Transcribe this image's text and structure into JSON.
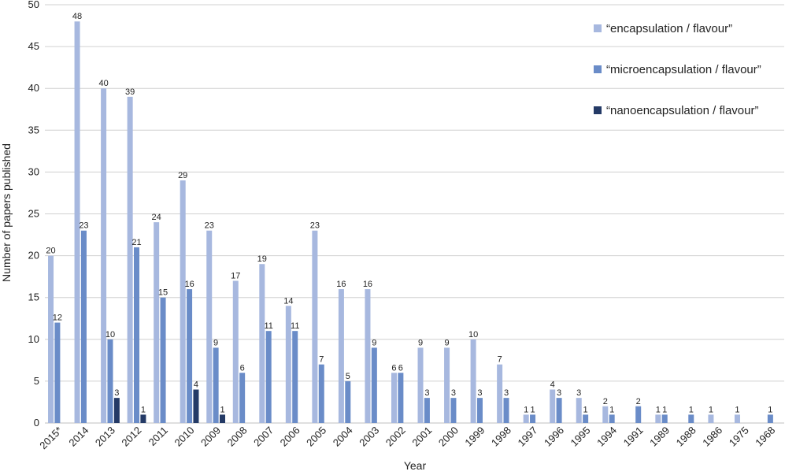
{
  "chart_data": {
    "type": "bar",
    "xlabel": "Year",
    "ylabel": "Number of papers published",
    "ylim": [
      0,
      50
    ],
    "yticks": [
      0,
      5,
      10,
      15,
      20,
      25,
      30,
      35,
      40,
      45,
      50
    ],
    "grid": true,
    "legend_position": "top-right",
    "categories": [
      "2015*",
      "2014",
      "2013",
      "2012",
      "2011",
      "2010",
      "2009",
      "2008",
      "2007",
      "2006",
      "2005",
      "2004",
      "2003",
      "2002",
      "2001",
      "2000",
      "1999",
      "1998",
      "1997",
      "1996",
      "1995",
      "1994",
      "1991",
      "1989",
      "1988",
      "1986",
      "1975",
      "1968"
    ],
    "series": [
      {
        "name": "“encapsulation / flavour”",
        "color": "#a7b8df",
        "values": [
          20,
          48,
          40,
          39,
          24,
          29,
          23,
          17,
          19,
          14,
          23,
          16,
          16,
          6,
          9,
          9,
          10,
          7,
          1,
          4,
          3,
          2,
          0,
          1,
          0,
          1,
          1,
          0
        ]
      },
      {
        "name": "“microencapsulation / flavour”",
        "color": "#6a8cc8",
        "values": [
          12,
          23,
          10,
          21,
          15,
          16,
          9,
          6,
          11,
          11,
          7,
          5,
          9,
          6,
          3,
          3,
          3,
          3,
          1,
          3,
          1,
          1,
          2,
          1,
          1,
          0,
          0,
          1
        ]
      },
      {
        "name": "“nanoencapsulation / flavour”",
        "color": "#243a66",
        "values": [
          0,
          0,
          3,
          1,
          0,
          4,
          1,
          0,
          0,
          0,
          0,
          0,
          0,
          0,
          0,
          0,
          0,
          0,
          0,
          0,
          0,
          0,
          0,
          0,
          0,
          0,
          0,
          0
        ]
      }
    ],
    "grid_color": "#d0d0d0",
    "axis_color": "#bfbfbf"
  }
}
